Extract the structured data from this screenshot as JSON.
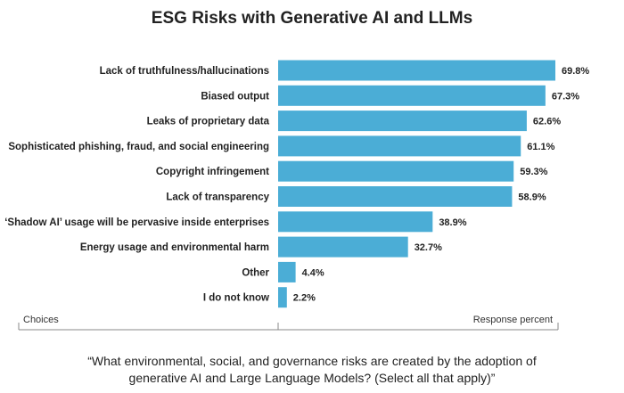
{
  "chart_data": {
    "type": "bar",
    "orientation": "horizontal",
    "title": "ESG Risks with Generative AI and LLMs",
    "categories": [
      "Lack of truthfulness/hallucinations",
      "Biased output",
      "Leaks of proprietary data",
      "Sophisticated phishing, fraud, and social engineering",
      "Copyright infringement",
      "Lack of transparency",
      "‘Shadow AI’ usage will be pervasive inside enterprises",
      "Energy usage and environmental harm",
      "Other",
      "I do not know"
    ],
    "values": [
      69.8,
      67.3,
      62.6,
      61.1,
      59.3,
      58.9,
      38.9,
      32.7,
      4.4,
      2.2
    ],
    "value_labels": [
      "69.8%",
      "67.3%",
      "62.6%",
      "61.1%",
      "59.3%",
      "58.9%",
      "38.9%",
      "32.7%",
      "4.4%",
      "2.2%"
    ],
    "xlabel_left": "Choices",
    "xlabel_right": "Response percent",
    "xlim": [
      0,
      70
    ],
    "grid": false,
    "bar_color": "#4badd6"
  },
  "caption_line1": "“What environmental, social, and governance risks are created by the adoption of",
  "caption_line2": "generative AI and Large Language Models? (Select all that apply)”"
}
